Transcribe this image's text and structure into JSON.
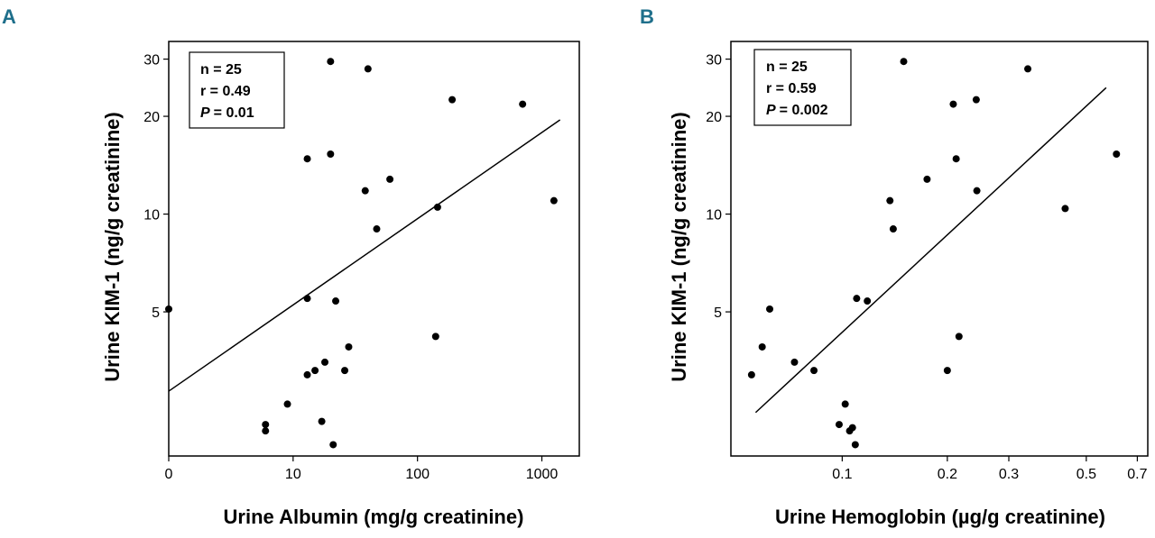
{
  "chart_data": [
    {
      "type": "scatter",
      "panel_label": "A",
      "panel_color": "#1f6f8b",
      "xscale": "log",
      "yscale": "log",
      "xlim": [
        1,
        2000
      ],
      "ylim": [
        1.8,
        34
      ],
      "xticks": [
        {
          "v": 1,
          "label": "0"
        },
        {
          "v": 10,
          "label": "10"
        },
        {
          "v": 100,
          "label": "100"
        },
        {
          "v": 1000,
          "label": "1000"
        }
      ],
      "yticks": [
        {
          "v": 5,
          "label": "5"
        },
        {
          "v": 10,
          "label": "10"
        },
        {
          "v": 20,
          "label": "20"
        },
        {
          "v": 30,
          "label": "30"
        }
      ],
      "xlabel": "Urine Albumin (mg/g creatinine)",
      "ylabel": "Urine KIM-1 (ng/g creatinine)",
      "stats": {
        "n_label": "n = 25",
        "r_label": "r = 0.49",
        "p_symbol": "P",
        "p_value": "= 0.01"
      },
      "points": [
        {
          "x": 1,
          "y": 5.1
        },
        {
          "x": 6,
          "y": 2.25
        },
        {
          "x": 6,
          "y": 2.15
        },
        {
          "x": 9,
          "y": 2.6
        },
        {
          "x": 13,
          "y": 3.2
        },
        {
          "x": 13,
          "y": 5.5
        },
        {
          "x": 13,
          "y": 14.8
        },
        {
          "x": 15,
          "y": 3.3
        },
        {
          "x": 17,
          "y": 2.3
        },
        {
          "x": 18,
          "y": 3.5
        },
        {
          "x": 20,
          "y": 29.5
        },
        {
          "x": 20,
          "y": 15.3
        },
        {
          "x": 21,
          "y": 1.95
        },
        {
          "x": 22,
          "y": 5.4
        },
        {
          "x": 26,
          "y": 3.3
        },
        {
          "x": 28,
          "y": 3.9
        },
        {
          "x": 38,
          "y": 11.8
        },
        {
          "x": 40,
          "y": 28.0
        },
        {
          "x": 47,
          "y": 9.0
        },
        {
          "x": 60,
          "y": 12.8
        },
        {
          "x": 140,
          "y": 4.2
        },
        {
          "x": 145,
          "y": 10.5
        },
        {
          "x": 190,
          "y": 22.5
        },
        {
          "x": 700,
          "y": 21.8
        },
        {
          "x": 1250,
          "y": 11.0
        }
      ],
      "regression": {
        "x1": 1,
        "y1": 2.85,
        "x2": 1400,
        "y2": 19.5
      }
    },
    {
      "type": "scatter",
      "panel_label": "B",
      "panel_color": "#1f6f8b",
      "xscale": "log",
      "yscale": "log",
      "xlim": [
        0.048,
        0.75
      ],
      "ylim": [
        1.8,
        34
      ],
      "xticks": [
        {
          "v": 0.1,
          "label": "0.1"
        },
        {
          "v": 0.2,
          "label": "0.2"
        },
        {
          "v": 0.3,
          "label": "0.3"
        },
        {
          "v": 0.5,
          "label": "0.5"
        },
        {
          "v": 0.7,
          "label": "0.7"
        }
      ],
      "yticks": [
        {
          "v": 5,
          "label": "5"
        },
        {
          "v": 10,
          "label": "10"
        },
        {
          "v": 20,
          "label": "20"
        },
        {
          "v": 30,
          "label": "30"
        }
      ],
      "xlabel": "Urine Hemoglobin (µg/g creatinine)",
      "ylabel": "Urine KIM-1 (ng/g creatinine)",
      "stats": {
        "n_label": "n = 25",
        "r_label": "r = 0.59",
        "p_symbol": "P",
        "p_value": "= 0.002"
      },
      "points": [
        {
          "x": 0.055,
          "y": 3.2
        },
        {
          "x": 0.059,
          "y": 3.9
        },
        {
          "x": 0.062,
          "y": 5.1
        },
        {
          "x": 0.073,
          "y": 3.5
        },
        {
          "x": 0.083,
          "y": 3.3
        },
        {
          "x": 0.098,
          "y": 2.25
        },
        {
          "x": 0.102,
          "y": 2.6
        },
        {
          "x": 0.105,
          "y": 2.15
        },
        {
          "x": 0.107,
          "y": 2.2
        },
        {
          "x": 0.109,
          "y": 1.95
        },
        {
          "x": 0.11,
          "y": 5.5
        },
        {
          "x": 0.118,
          "y": 5.4
        },
        {
          "x": 0.137,
          "y": 11.0
        },
        {
          "x": 0.14,
          "y": 9.0
        },
        {
          "x": 0.15,
          "y": 29.5
        },
        {
          "x": 0.175,
          "y": 12.8
        },
        {
          "x": 0.2,
          "y": 3.3
        },
        {
          "x": 0.208,
          "y": 21.8
        },
        {
          "x": 0.212,
          "y": 14.8
        },
        {
          "x": 0.216,
          "y": 4.2
        },
        {
          "x": 0.242,
          "y": 22.5
        },
        {
          "x": 0.243,
          "y": 11.8
        },
        {
          "x": 0.34,
          "y": 28.0
        },
        {
          "x": 0.435,
          "y": 10.4
        },
        {
          "x": 0.61,
          "y": 15.3
        }
      ],
      "regression": {
        "x1": 0.0565,
        "y1": 2.45,
        "x2": 0.57,
        "y2": 24.5
      }
    }
  ]
}
